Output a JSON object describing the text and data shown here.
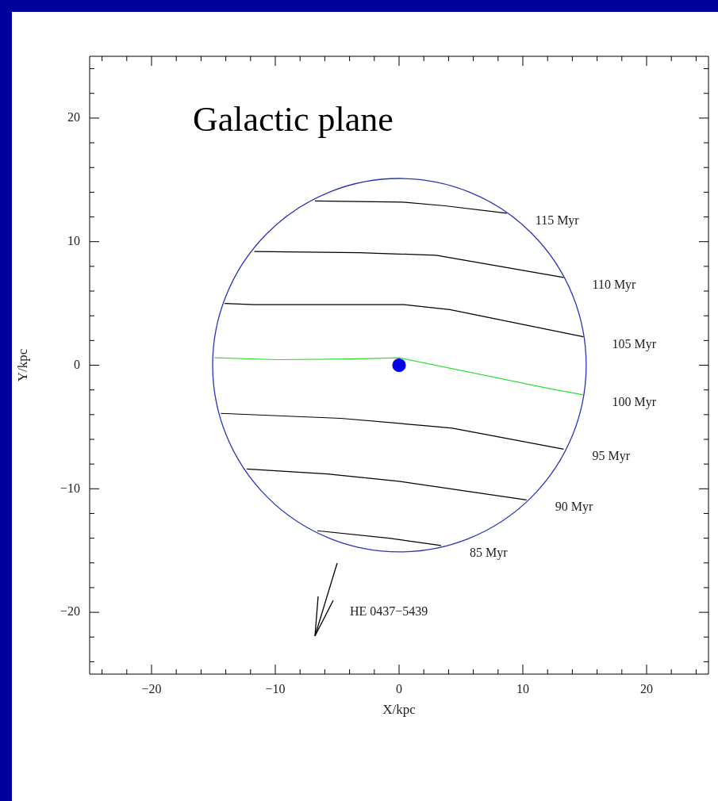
{
  "chart_data": {
    "type": "line",
    "title": "Galactic plane",
    "xlabel": "X/kpc",
    "ylabel": "Y/kpc",
    "xlim": [
      -25,
      25
    ],
    "ylim": [
      -25,
      25
    ],
    "xticks": [
      {
        "value": -24,
        "label": null
      },
      {
        "value": -22,
        "label": null
      },
      {
        "value": -20,
        "label": "−20"
      },
      {
        "value": -18,
        "label": null
      },
      {
        "value": -16,
        "label": null
      },
      {
        "value": -14,
        "label": null
      },
      {
        "value": -12,
        "label": null
      },
      {
        "value": -10,
        "label": "−10"
      },
      {
        "value": -8,
        "label": null
      },
      {
        "value": -6,
        "label": null
      },
      {
        "value": -4,
        "label": null
      },
      {
        "value": -2,
        "label": null
      },
      0,
      {
        "value": 2,
        "label": null
      },
      {
        "value": 4,
        "label": null
      },
      {
        "value": 6,
        "label": null
      },
      {
        "value": 8,
        "label": null
      },
      10,
      {
        "value": 12,
        "label": null
      },
      {
        "value": 14,
        "label": null
      },
      {
        "value": 16,
        "label": null
      },
      {
        "value": 18,
        "label": null
      },
      20,
      {
        "value": 22,
        "label": null
      },
      {
        "value": 24,
        "label": null
      }
    ],
    "yticks": [
      {
        "value": -24,
        "label": null
      },
      {
        "value": -22,
        "label": null
      },
      {
        "value": -20,
        "label": "−20"
      },
      {
        "value": -18,
        "label": null
      },
      {
        "value": -16,
        "label": null
      },
      {
        "value": -14,
        "label": null
      },
      {
        "value": -12,
        "label": null
      },
      {
        "value": -10,
        "label": "−10"
      },
      {
        "value": -8,
        "label": null
      },
      {
        "value": -6,
        "label": null
      },
      {
        "value": -4,
        "label": null
      },
      {
        "value": -2,
        "label": null
      },
      0,
      {
        "value": 2,
        "label": null
      },
      {
        "value": 4,
        "label": null
      },
      {
        "value": 6,
        "label": null
      },
      {
        "value": 8,
        "label": null
      },
      10,
      {
        "value": 12,
        "label": null
      },
      {
        "value": 14,
        "label": null
      },
      {
        "value": 16,
        "label": null
      },
      {
        "value": 18,
        "label": null
      },
      20,
      {
        "value": 22,
        "label": null
      },
      {
        "value": 24,
        "label": null
      }
    ],
    "grid": false,
    "legend": false,
    "line_style": "solid",
    "series": [
      {
        "type": "line",
        "name": "115 Myr",
        "color": "#000000",
        "marker": "none",
        "x": [
          -6.8,
          0.3,
          3.7,
          8.7
        ],
        "values": [
          13.3,
          13.2,
          12.9,
          12.3
        ]
      },
      {
        "type": "line",
        "name": "110 Myr",
        "color": "#000000",
        "marker": "none",
        "x": [
          -11.7,
          -3.2,
          0,
          3,
          13.3
        ],
        "values": [
          9.2,
          9.1,
          9.0,
          8.9,
          7.1
        ]
      },
      {
        "type": "line",
        "name": "105 Myr",
        "color": "#000000",
        "marker": "none",
        "x": [
          -14.1,
          -11.7,
          0.4,
          4.1,
          14.9
        ],
        "values": [
          5.0,
          4.9,
          4.9,
          4.5,
          2.3
        ]
      },
      {
        "type": "line",
        "name": "100 Myr",
        "color": "#33dd33",
        "marker": "none",
        "x": [
          -14.9,
          -9.8,
          -4,
          0,
          12.2,
          14.9
        ],
        "values": [
          0.6,
          0.45,
          0.5,
          0.6,
          -1.9,
          -2.4
        ]
      },
      {
        "type": "line",
        "name": "95 Myr",
        "color": "#000000",
        "marker": "none",
        "x": [
          -14.4,
          -4.7,
          2.2,
          4.3,
          13.3
        ],
        "values": [
          -3.9,
          -4.3,
          -4.9,
          -5.1,
          -6.8
        ]
      },
      {
        "type": "line",
        "name": "90 Myr",
        "color": "#000000",
        "marker": "none",
        "x": [
          -12.3,
          -5.8,
          0,
          10.3
        ],
        "values": [
          -8.4,
          -8.8,
          -9.4,
          -10.9
        ]
      },
      {
        "type": "line",
        "name": "85 Myr",
        "color": "#000000",
        "marker": "none",
        "x": [
          -6.6,
          -0.8,
          3.4
        ],
        "values": [
          -13.4,
          -14.0,
          -14.6
        ]
      },
      {
        "type": "scatter",
        "color": "#0000ee",
        "marker": "circle",
        "x": [
          0
        ],
        "values": [
          0
        ]
      }
    ],
    "annotations": [
      "HE 0437−5439"
    ]
  }
}
